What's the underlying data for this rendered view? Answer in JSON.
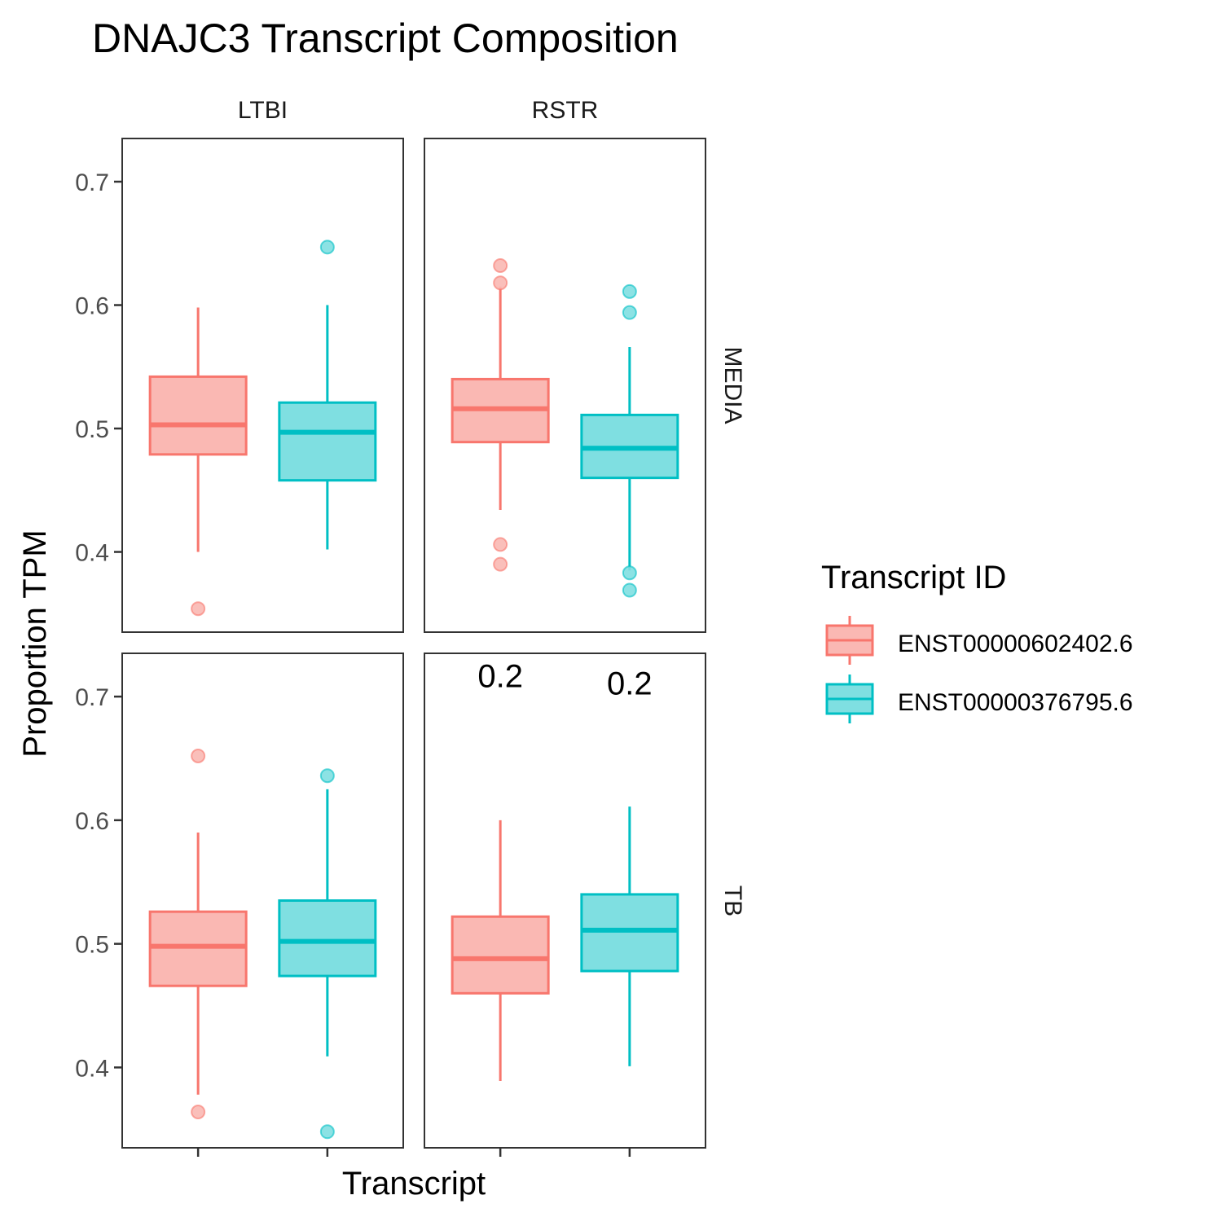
{
  "chart_data": {
    "type": "boxplot",
    "title": "DNAJC3 Transcript Composition",
    "xlabel": "Transcript",
    "ylabel": "Proportion TPM",
    "ylim": [
      0.335,
      0.735
    ],
    "yticks": [
      0.4,
      0.5,
      0.6,
      0.7
    ],
    "ytick_labels": [
      "0.4",
      "0.5",
      "0.6",
      "0.7"
    ],
    "col_facets": [
      "LTBI",
      "RSTR"
    ],
    "row_facets": [
      "MEDIA",
      "TB"
    ],
    "legend": {
      "title": "Transcript ID",
      "placement": "right",
      "entries": [
        "ENST00000602402.6",
        "ENST00000376795.6"
      ]
    },
    "series_colors": {
      "ENST00000602402.6": {
        "line": "#F8766D",
        "fill": "#FAB8B3"
      },
      "ENST00000376795.6": {
        "line": "#00BFC4",
        "fill": "#7FDFE1"
      }
    },
    "grid": false,
    "panels": [
      {
        "row": "MEDIA",
        "col": "LTBI",
        "boxes": [
          {
            "series": "ENST00000602402.6",
            "whisker_low": 0.4,
            "q1": 0.479,
            "median": 0.503,
            "q3": 0.542,
            "whisker_high": 0.598,
            "outliers": [
              0.354
            ]
          },
          {
            "series": "ENST00000376795.6",
            "whisker_low": 0.402,
            "q1": 0.458,
            "median": 0.497,
            "q3": 0.521,
            "whisker_high": 0.6,
            "outliers": [
              0.647
            ]
          }
        ],
        "annotations": []
      },
      {
        "row": "MEDIA",
        "col": "RSTR",
        "boxes": [
          {
            "series": "ENST00000602402.6",
            "whisker_low": 0.434,
            "q1": 0.489,
            "median": 0.516,
            "q3": 0.54,
            "whisker_high": 0.615,
            "outliers": [
              0.632,
              0.618,
              0.406,
              0.39
            ]
          },
          {
            "series": "ENST00000376795.6",
            "whisker_low": 0.385,
            "q1": 0.46,
            "median": 0.484,
            "q3": 0.511,
            "whisker_high": 0.566,
            "outliers": [
              0.611,
              0.594,
              0.383,
              0.369
            ]
          }
        ],
        "annotations": []
      },
      {
        "row": "TB",
        "col": "LTBI",
        "boxes": [
          {
            "series": "ENST00000602402.6",
            "whisker_low": 0.378,
            "q1": 0.466,
            "median": 0.498,
            "q3": 0.526,
            "whisker_high": 0.59,
            "outliers": [
              0.652,
              0.364
            ]
          },
          {
            "series": "ENST00000376795.6",
            "whisker_low": 0.409,
            "q1": 0.474,
            "median": 0.502,
            "q3": 0.535,
            "whisker_high": 0.625,
            "outliers": [
              0.636,
              0.348
            ]
          }
        ],
        "annotations": []
      },
      {
        "row": "TB",
        "col": "RSTR",
        "boxes": [
          {
            "series": "ENST00000602402.6",
            "whisker_low": 0.389,
            "q1": 0.46,
            "median": 0.488,
            "q3": 0.522,
            "whisker_high": 0.6,
            "outliers": []
          },
          {
            "series": "ENST00000376795.6",
            "whisker_low": 0.401,
            "q1": 0.478,
            "median": 0.511,
            "q3": 0.54,
            "whisker_high": 0.611,
            "outliers": []
          }
        ],
        "annotations": [
          {
            "series": "ENST00000602402.6",
            "text": "0.2",
            "y": 0.717
          },
          {
            "series": "ENST00000376795.6",
            "text": "0.2",
            "y": 0.711
          }
        ]
      }
    ]
  }
}
